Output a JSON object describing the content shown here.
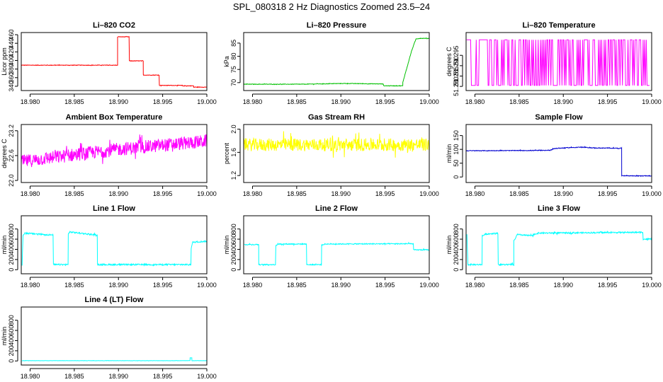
{
  "page": {
    "title": "SPL_080318  2 Hz Diagnostics Zoomed 23.5–24"
  },
  "chart_data": [
    {
      "type": "line",
      "title": "Li–820 CO2",
      "xlabel": "",
      "ylabel": "Licor ppm",
      "xlim": [
        18.979,
        19.0
      ],
      "ylim": [
        330,
        465
      ],
      "xticks": [
        "18.980",
        "18.985",
        "18.990",
        "18.995",
        "19.000"
      ],
      "yticks": [
        "340",
        "360",
        "380",
        "400",
        "420",
        "440",
        "460"
      ],
      "color": "#ff0000",
      "noise": 0.6,
      "series": [
        {
          "x": [
            18.979,
            18.9899,
            18.9899,
            18.9912,
            18.9912,
            18.9928,
            18.9928,
            18.9946,
            18.9946,
            18.9972,
            18.9972,
            18.9978,
            18.9978,
            18.9985,
            18.9985,
            19.0
          ],
          "y": [
            389,
            389,
            455,
            455,
            399,
            399,
            366,
            366,
            342,
            342,
            341,
            341,
            341,
            341,
            338,
            338
          ]
        }
      ]
    },
    {
      "type": "line",
      "title": "Li–820 Pressure",
      "xlabel": "",
      "ylabel": "kPa",
      "xlim": [
        18.979,
        19.0
      ],
      "ylim": [
        67,
        89
      ],
      "xticks": [
        "18.980",
        "18.985",
        "18.990",
        "18.995",
        "19.000"
      ],
      "yticks": [
        "70",
        "75",
        "80",
        "85"
      ],
      "color": "#00c000",
      "noise": 0.1,
      "series": [
        {
          "x": [
            18.979,
            18.9855,
            18.9905,
            18.9948,
            18.9948,
            18.997,
            18.997,
            18.9975,
            18.998,
            18.9985,
            18.999,
            19.0
          ],
          "y": [
            69.4,
            69.4,
            69.7,
            69.5,
            68.8,
            68.8,
            70,
            76,
            82,
            86.6,
            86.8,
            86.8
          ]
        }
      ]
    },
    {
      "type": "line",
      "title": "Li–820 Temperature",
      "xlabel": "",
      "ylabel": "degrees C",
      "xlim": [
        18.979,
        19.0
      ],
      "ylim": [
        51.278,
        51.306
      ],
      "xticks": [
        "18.980",
        "18.985",
        "18.990",
        "18.995",
        "19.000"
      ],
      "yticks": [
        "51.280",
        "51.285",
        "51.290",
        "51.295"
      ],
      "color": "#ff00ff",
      "noise": 0,
      "levels": [
        51.2805,
        51.3025
      ],
      "series": [
        {
          "x": [
            18.979,
            19.0
          ],
          "y": [
            51.2805,
            51.3025
          ]
        }
      ]
    },
    {
      "type": "line",
      "title": "Ambient Box Temperature",
      "xlabel": "",
      "ylabel": "degrees C",
      "xlim": [
        18.979,
        19.0
      ],
      "ylim": [
        21.95,
        23.35
      ],
      "xticks": [
        "18.980",
        "18.985",
        "18.990",
        "18.995",
        "19.000"
      ],
      "yticks": [
        "22.0",
        "22.6",
        "23.2"
      ],
      "color": "#ff00ff",
      "noise": 0.16,
      "series": [
        {
          "x": [
            18.979,
            18.985,
            18.99,
            18.995,
            19.0
          ],
          "y": [
            22.45,
            22.62,
            22.75,
            22.85,
            22.95
          ]
        }
      ]
    },
    {
      "type": "line",
      "title": "Gas Stream RH",
      "xlabel": "",
      "ylabel": "percent",
      "xlim": [
        18.979,
        19.0
      ],
      "ylim": [
        1.08,
        2.08
      ],
      "xticks": [
        "18.980",
        "18.985",
        "18.990",
        "18.995",
        "19.000"
      ],
      "yticks": [
        "1.2",
        "1.6",
        "2.0"
      ],
      "color": "#ffff00",
      "noise": 0.11,
      "series": [
        {
          "x": [
            18.979,
            19.0
          ],
          "y": [
            1.73,
            1.73
          ]
        }
      ]
    },
    {
      "type": "line",
      "title": "Sample Flow",
      "xlabel": "",
      "ylabel": "ml/min",
      "xlim": [
        18.979,
        19.0
      ],
      "ylim": [
        -20,
        190
      ],
      "xticks": [
        "18.980",
        "18.985",
        "18.990",
        "18.995",
        "19.000"
      ],
      "yticks": [
        "0",
        "50",
        "100",
        "150"
      ],
      "color": "#0000d0",
      "noise": 1.2,
      "series": [
        {
          "x": [
            18.979,
            18.9875,
            18.9885,
            18.989,
            18.9905,
            18.992,
            18.9935,
            18.9966,
            18.9966,
            18.998,
            19.0
          ],
          "y": [
            95,
            96,
            97,
            103,
            106,
            108,
            105,
            104,
            5,
            4,
            4
          ]
        }
      ]
    },
    {
      "type": "line",
      "title": "Line 1 Flow",
      "xlabel": "",
      "ylabel": "ml/min",
      "xlim": [
        18.979,
        19.0
      ],
      "ylim": [
        -80,
        1060
      ],
      "xticks": [
        "18.980",
        "18.985",
        "18.990",
        "18.995",
        "19.000"
      ],
      "yticks": [
        "0",
        "200",
        "400",
        "600",
        "800"
      ],
      "color": "#00ffff",
      "noise": 14,
      "series": [
        {
          "x": [
            18.9791,
            18.9792,
            18.9794,
            18.9805,
            18.9826,
            18.9826,
            18.9843,
            18.9843,
            18.9845,
            18.9856,
            18.9876,
            18.9876,
            18.9982,
            18.9982,
            18.9984,
            19.0
          ],
          "y": [
            90,
            680,
            720,
            705,
            680,
            100,
            100,
            700,
            740,
            720,
            680,
            100,
            100,
            400,
            540,
            560
          ]
        }
      ]
    },
    {
      "type": "line",
      "title": "Line 2 Flow",
      "xlabel": "",
      "ylabel": "ml/min",
      "xlim": [
        18.979,
        19.0
      ],
      "ylim": [
        -80,
        1060
      ],
      "xticks": [
        "18.980",
        "18.985",
        "18.990",
        "18.995",
        "19.000"
      ],
      "yticks": [
        "0",
        "200",
        "400",
        "600",
        "800"
      ],
      "color": "#00ffff",
      "noise": 10,
      "series": [
        {
          "x": [
            18.9791,
            18.9807,
            18.9807,
            18.9826,
            18.9826,
            18.9829,
            18.9861,
            18.9861,
            18.9878,
            18.9878,
            18.9882,
            18.9982,
            18.9982,
            19.0
          ],
          "y": [
            495,
            495,
            100,
            100,
            470,
            505,
            505,
            100,
            100,
            480,
            505,
            510,
            390,
            390
          ]
        }
      ]
    },
    {
      "type": "line",
      "title": "Line 3 Flow",
      "xlabel": "",
      "ylabel": "ml/min",
      "xlim": [
        18.979,
        19.0
      ],
      "ylim": [
        -80,
        1060
      ],
      "xticks": [
        "18.980",
        "18.985",
        "18.990",
        "18.995",
        "19.000"
      ],
      "yticks": [
        "0",
        "200",
        "400",
        "600",
        "800"
      ],
      "color": "#00ffff",
      "noise": 13,
      "series": [
        {
          "x": [
            18.9791,
            18.9792,
            18.9808,
            18.9808,
            18.9812,
            18.9826,
            18.9826,
            18.9844,
            18.9844,
            18.9848,
            18.9866,
            18.9866,
            18.9872,
            18.999,
            18.9982,
            18.9982,
            19.0
          ],
          "y": [
            700,
            100,
            100,
            660,
            700,
            715,
            100,
            100,
            560,
            690,
            665,
            690,
            720,
            735,
            720,
            600,
            600
          ]
        }
      ]
    },
    {
      "type": "line",
      "title": "Line 4 (LT) Flow",
      "xlabel": "",
      "ylabel": "ml/min",
      "xlim": [
        18.979,
        19.0
      ],
      "ylim": [
        -80,
        1060
      ],
      "xticks": [
        "18.980",
        "18.985",
        "18.990",
        "18.995",
        "19.000"
      ],
      "yticks": [
        "0",
        "200",
        "400",
        "600",
        "800"
      ],
      "color": "#00ffff",
      "noise": 2,
      "series": [
        {
          "x": [
            18.9791,
            18.9981,
            18.9981,
            18.9983,
            18.9983,
            19.0
          ],
          "y": [
            5,
            5,
            60,
            60,
            5,
            5
          ]
        }
      ]
    }
  ]
}
